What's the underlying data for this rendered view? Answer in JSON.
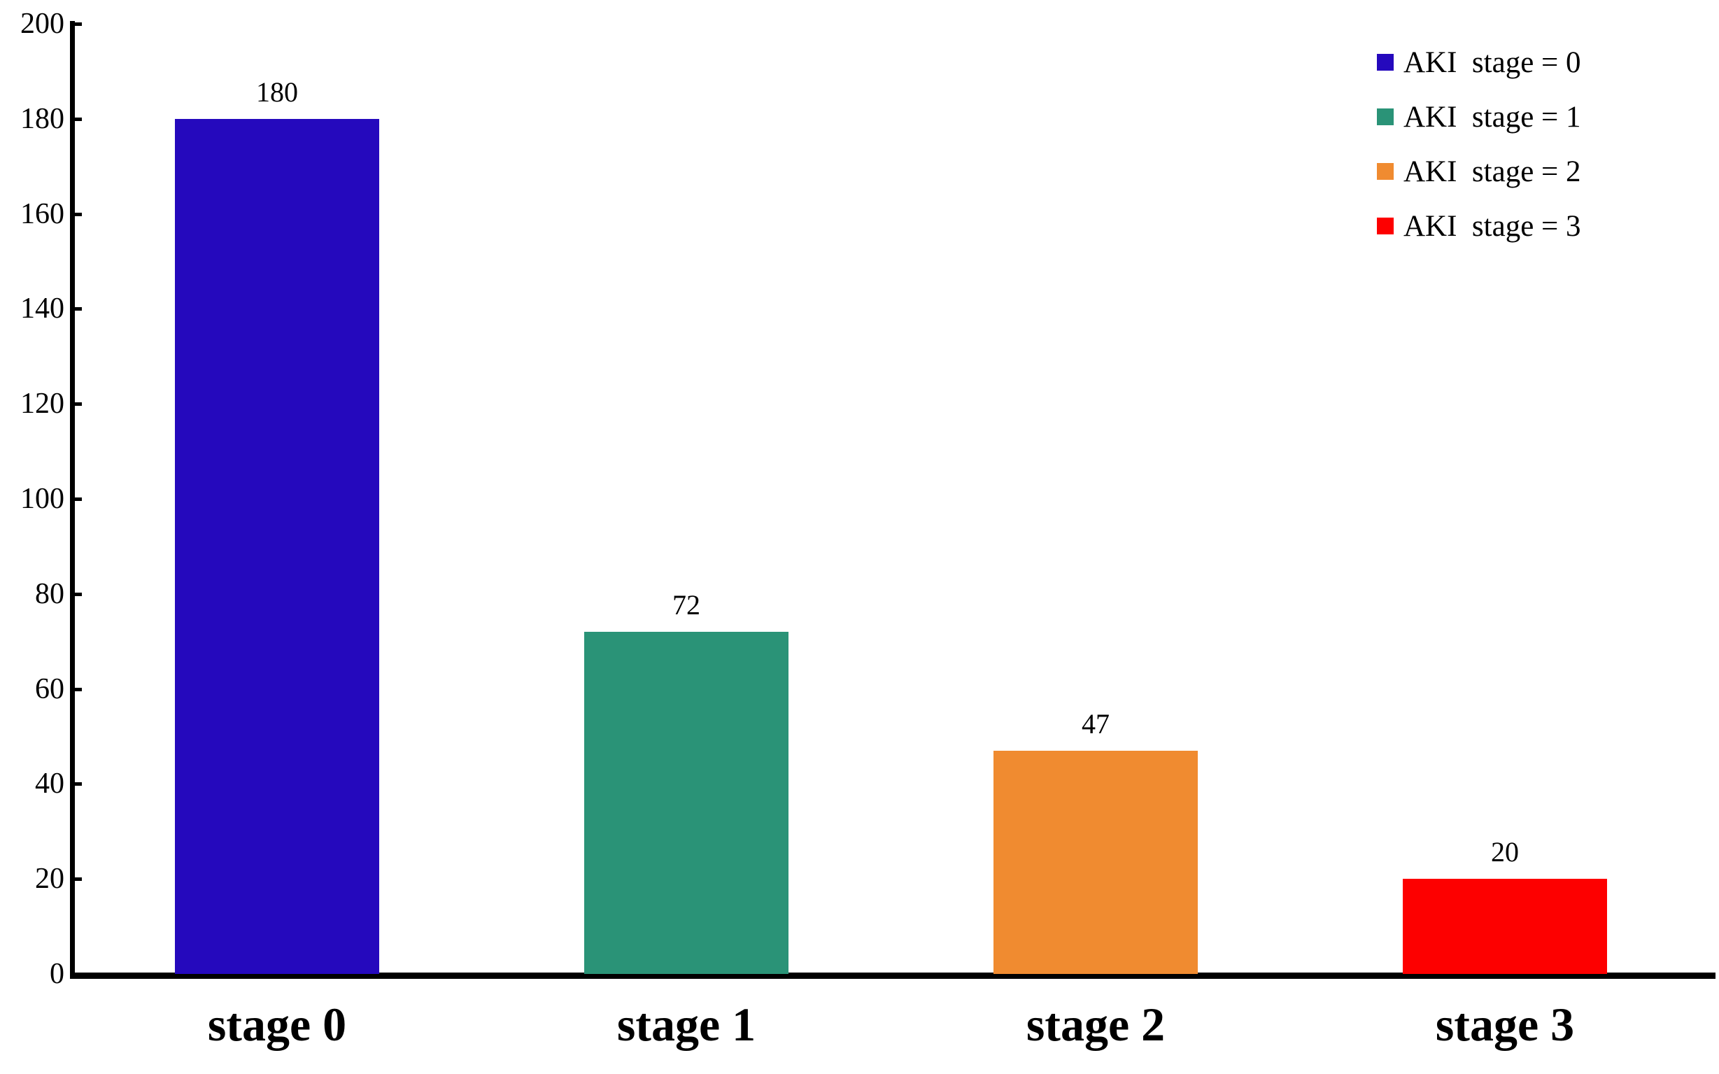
{
  "chart_data": {
    "type": "bar",
    "title": "",
    "xlabel": "",
    "ylabel": "",
    "categories": [
      "stage 0",
      "stage 1",
      "stage 2",
      "stage 3"
    ],
    "values": [
      180,
      72,
      47,
      20
    ],
    "value_labels": [
      "180",
      "72",
      "47",
      "20"
    ],
    "bar_colors": [
      "#2509BD",
      "#2A9377",
      "#F08B30",
      "#FD0000"
    ],
    "ylim": [
      0,
      200
    ],
    "ytick_step": 20,
    "ytick_labels": [
      "0",
      "20",
      "40",
      "60",
      "80",
      "100",
      "120",
      "140",
      "160",
      "180",
      "200"
    ],
    "grid": false,
    "legend_position": "top-right",
    "legend": [
      {
        "label": "AKI  stage = 0",
        "color": "#2509BD"
      },
      {
        "label": "AKI  stage = 1",
        "color": "#2A9377"
      },
      {
        "label": "AKI  stage = 2",
        "color": "#F08B30"
      },
      {
        "label": "AKI  stage = 3",
        "color": "#FD0000"
      }
    ],
    "axis_color": "#000000",
    "background_color": "#FFFFFF"
  }
}
